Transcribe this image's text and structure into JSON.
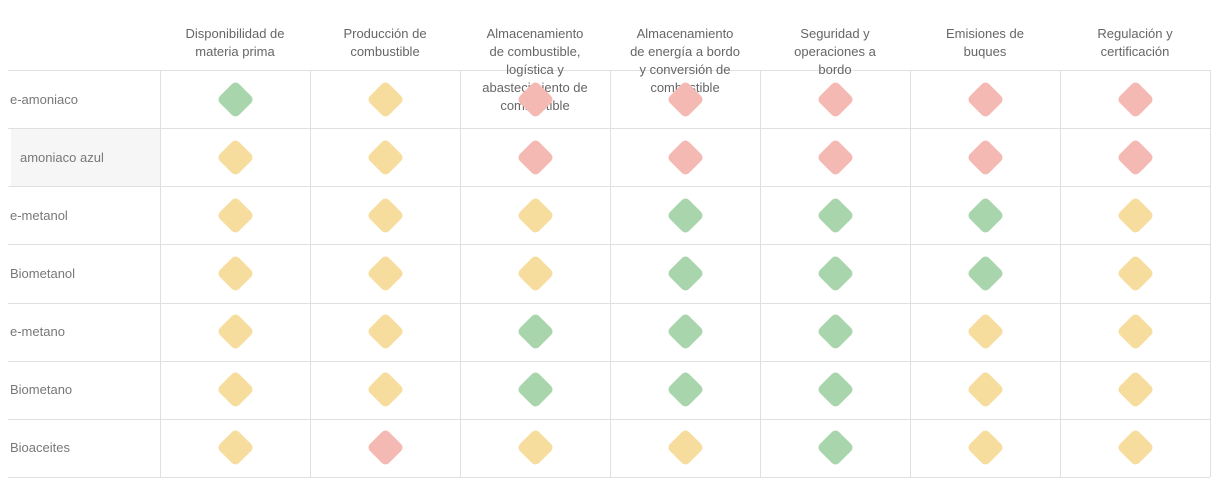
{
  "table": {
    "columns": [
      "Disponibilidad de\nmateria prima",
      "Producción de\ncombustible",
      "Almacenamiento\nde combustible,\nlogística y\nabastecimiento de\ncombustible",
      "Almacenamiento\nde energía a bordo\ny conversión de\ncombustible",
      "Seguridad y\noperaciones a\nbordo",
      "Emisiones de\nbuques",
      "Regulación y\ncertificación"
    ],
    "rows": [
      {
        "label": "e-amoniaco",
        "highlighted": false,
        "ratings": [
          "green",
          "yellow",
          "red",
          "red",
          "red",
          "red",
          "red"
        ]
      },
      {
        "label": "amoniaco azul",
        "highlighted": true,
        "ratings": [
          "yellow",
          "yellow",
          "red",
          "red",
          "red",
          "red",
          "red"
        ]
      },
      {
        "label": "e-metanol",
        "highlighted": false,
        "ratings": [
          "yellow",
          "yellow",
          "yellow",
          "green",
          "green",
          "green",
          "yellow"
        ]
      },
      {
        "label": "Biometanol",
        "highlighted": false,
        "ratings": [
          "yellow",
          "yellow",
          "yellow",
          "green",
          "green",
          "green",
          "yellow"
        ]
      },
      {
        "label": "e-metano",
        "highlighted": false,
        "ratings": [
          "yellow",
          "yellow",
          "green",
          "green",
          "green",
          "yellow",
          "yellow"
        ]
      },
      {
        "label": "Biometano",
        "highlighted": false,
        "ratings": [
          "yellow",
          "yellow",
          "green",
          "green",
          "green",
          "yellow",
          "yellow"
        ]
      },
      {
        "label": "Bioaceites",
        "highlighted": false,
        "ratings": [
          "yellow",
          "red",
          "yellow",
          "yellow",
          "green",
          "yellow",
          "yellow"
        ]
      }
    ],
    "rating_colors": {
      "green": "#a9d5ad",
      "yellow": "#f7dd9d",
      "red": "#f5b9b3"
    },
    "grid_color": "#e0e0e0",
    "highlight_color": "#f6f6f6",
    "header_text_color": "#666666",
    "label_text_color": "#787878"
  },
  "chart_data": {
    "type": "heatmap",
    "title": "",
    "x_categories": [
      "Disponibilidad de materia prima",
      "Producción de combustible",
      "Almacenamiento de combustible, logística y abastecimiento de combustible",
      "Almacenamiento de energía a bordo y conversión de combustible",
      "Seguridad y operaciones a bordo",
      "Emisiones de buques",
      "Regulación y certificación"
    ],
    "y_categories": [
      "e-amoniaco",
      "amoniaco azul",
      "e-metanol",
      "Biometanol",
      "e-metano",
      "Biometano",
      "Bioaceites"
    ],
    "values": [
      [
        "green",
        "yellow",
        "red",
        "red",
        "red",
        "red",
        "red"
      ],
      [
        "yellow",
        "yellow",
        "red",
        "red",
        "red",
        "red",
        "red"
      ],
      [
        "yellow",
        "yellow",
        "yellow",
        "green",
        "green",
        "green",
        "yellow"
      ],
      [
        "yellow",
        "yellow",
        "yellow",
        "green",
        "green",
        "green",
        "yellow"
      ],
      [
        "yellow",
        "yellow",
        "green",
        "green",
        "green",
        "yellow",
        "yellow"
      ],
      [
        "yellow",
        "yellow",
        "green",
        "green",
        "green",
        "yellow",
        "yellow"
      ],
      [
        "yellow",
        "red",
        "yellow",
        "yellow",
        "green",
        "yellow",
        "yellow"
      ]
    ],
    "value_colors": {
      "green": "#a9d5ad",
      "yellow": "#f7dd9d",
      "red": "#f5b9b3"
    },
    "marker": "rounded-diamond",
    "grid": true,
    "legend_position": "none"
  }
}
